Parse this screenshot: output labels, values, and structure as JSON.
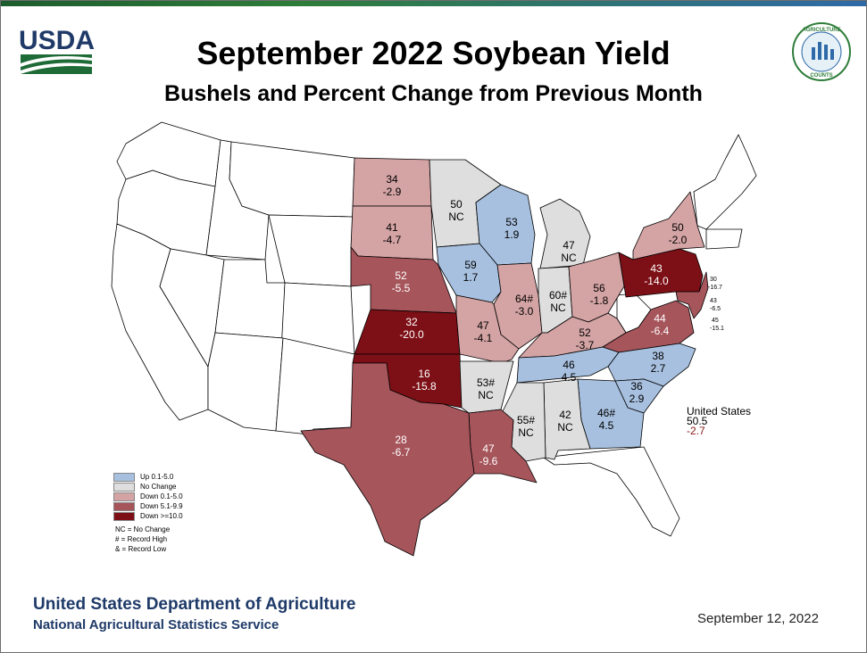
{
  "header": {
    "title": "September 2022 Soybean Yield",
    "subtitle": "Bushels and Percent Change from Previous Month",
    "logo_text": "USDA",
    "badge_top": "AGRICULTURE",
    "badge_bottom": "COUNTS"
  },
  "colors": {
    "up": "#a7c0df",
    "nochange": "#dedede",
    "down_small": "#d4a3a4",
    "down_mid": "#a6555b",
    "down_big": "#7d1016",
    "none": "#ffffff"
  },
  "states": {
    "ND": {
      "yield": "34",
      "change": "-2.9"
    },
    "SD": {
      "yield": "41",
      "change": "-4.7"
    },
    "MN": {
      "yield": "50",
      "change": "NC"
    },
    "WI": {
      "yield": "53",
      "change": "1.9"
    },
    "MI": {
      "yield": "47",
      "change": "NC"
    },
    "NY": {
      "yield": "50",
      "change": "-2.0"
    },
    "NE": {
      "yield": "52",
      "change": "-5.5"
    },
    "IA": {
      "yield": "59",
      "change": "1.7"
    },
    "IL": {
      "yield": "64#",
      "change": "-3.0"
    },
    "IN": {
      "yield": "60#",
      "change": "NC"
    },
    "OH": {
      "yield": "56",
      "change": "-1.8"
    },
    "PA": {
      "yield": "43",
      "change": "-14.0"
    },
    "KS": {
      "yield": "32",
      "change": "-20.0"
    },
    "MO": {
      "yield": "47",
      "change": "-4.1"
    },
    "KY": {
      "yield": "52",
      "change": "-3.7"
    },
    "VA": {
      "yield": "44",
      "change": "-6.4"
    },
    "OK": {
      "yield": "16",
      "change": "-15.8"
    },
    "AR": {
      "yield": "53#",
      "change": "NC"
    },
    "TN": {
      "yield": "46",
      "change": "4.5"
    },
    "NC": {
      "yield": "38",
      "change": "2.7"
    },
    "SC": {
      "yield": "36",
      "change": "2.9"
    },
    "TX": {
      "yield": "28",
      "change": "-6.7"
    },
    "LA": {
      "yield": "47",
      "change": "-9.6"
    },
    "MS": {
      "yield": "55#",
      "change": "NC"
    },
    "AL": {
      "yield": "42",
      "change": "NC"
    },
    "GA": {
      "yield": "46#",
      "change": "4.5"
    }
  },
  "east_coast": [
    {
      "yield": "30",
      "change": "-16.7"
    },
    {
      "yield": "43",
      "change": "-6.5"
    },
    {
      "yield": "45",
      "change": "-15.1"
    }
  ],
  "legend": {
    "items": [
      {
        "label": "Up 0.1-5.0",
        "color": "#a7c0df"
      },
      {
        "label": "No Change",
        "color": "#dedede"
      },
      {
        "label": "Down 0.1-5.0",
        "color": "#d4a3a4"
      },
      {
        "label": "Down 5.1-9.9",
        "color": "#a6555b"
      },
      {
        "label": "Down >=10.0",
        "color": "#7d1016"
      }
    ],
    "notes": [
      "NC = No Change",
      "# = Record High",
      "& = Record Low"
    ]
  },
  "us_total": {
    "label": "United States",
    "yield": "50.5",
    "change": "-2.7"
  },
  "footer": {
    "org": "United States Department of Agriculture",
    "service": "National Agricultural Statistics Service",
    "date": "September 12, 2022"
  }
}
